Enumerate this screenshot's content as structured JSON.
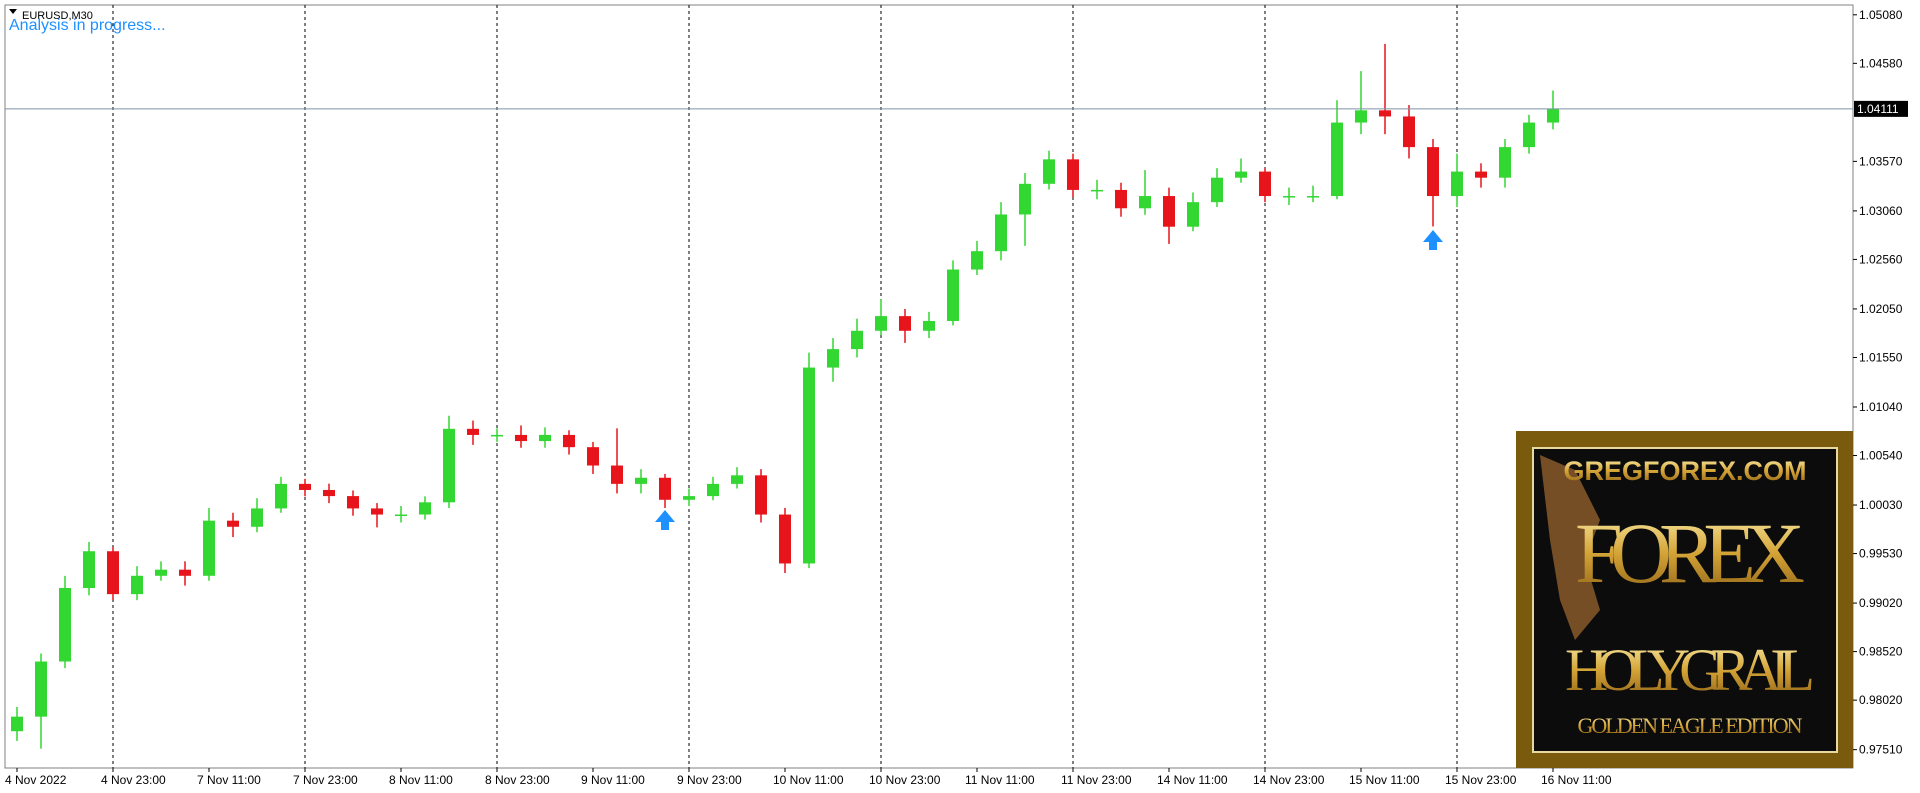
{
  "chart_data": {
    "type": "candlestick",
    "title": "EURUSD,M30",
    "subtitle": "Analysis in progress...",
    "categories": [
      "4 Nov 2022",
      null,
      null,
      null,
      "4 Nov 23:00",
      null,
      null,
      null,
      "7 Nov 11:00",
      null,
      null,
      null,
      "7 Nov 23:00",
      null,
      null,
      null,
      "8 Nov 11:00",
      null,
      null,
      null,
      "8 Nov 23:00",
      null,
      null,
      null,
      "9 Nov 11:00",
      null,
      null,
      null,
      "9 Nov 23:00",
      null,
      null,
      null,
      "10 Nov 11:00",
      null,
      null,
      null,
      "10 Nov 23:00",
      null,
      null,
      null,
      "11 Nov 11:00",
      null,
      null,
      null,
      "11 Nov 23:00",
      null,
      null,
      null,
      "14 Nov 11:00",
      null,
      null,
      null,
      "14 Nov 23:00",
      null,
      null,
      null,
      "15 Nov 11:00",
      null,
      null,
      null,
      "15 Nov 23:00",
      null,
      null,
      null,
      "16 Nov 11:00",
      null,
      null,
      null,
      null,
      null,
      null,
      null,
      null,
      null,
      null,
      null,
      null
    ],
    "open": [
      0.977,
      0.9785,
      0.98418,
      0.99175,
      0.99554,
      0.99112,
      0.99301,
      0.99364,
      0.99301,
      0.99869,
      0.99806,
      0.99995,
      1.00248,
      1.00185,
      1.00122,
      0.99995,
      0.99932,
      0.99932,
      1.00058,
      1.00815,
      1.00752,
      1.00752,
      1.00689,
      1.00752,
      1.00626,
      1.00437,
      1.00248,
      1.00311,
      1.00084,
      1.00122,
      1.00248,
      1.00336,
      0.99932,
      0.99428,
      1.01446,
      1.01636,
      1.01825,
      1.01976,
      1.01825,
      1.01926,
      1.02456,
      1.02645,
      1.03023,
      1.03339,
      1.03591,
      1.03276,
      1.03276,
      1.03087,
      1.03213,
      1.02897,
      1.0315,
      1.03402,
      1.03465,
      1.03213,
      1.03213,
      1.03213,
      1.0397,
      1.04096,
      1.04033,
      1.03717,
      1.03213,
      1.03465,
      1.03402,
      1.03717,
      1.0397,
      null,
      null,
      null,
      null,
      null,
      null,
      null,
      null,
      null,
      null,
      null,
      null
    ],
    "high": [
      0.9795,
      0.985,
      0.993,
      0.9965,
      0.996,
      0.994,
      0.9945,
      0.9945,
      1.0,
      0.9995,
      1.001,
      1.0032,
      1.003,
      1.0025,
      1.0018,
      1.0005,
      1.0002,
      1.0012,
      1.0095,
      1.009,
      1.0082,
      1.0085,
      1.0083,
      1.008,
      1.0068,
      1.0082,
      1.004,
      1.0035,
      1.002,
      1.0032,
      1.0042,
      1.004,
      1.0,
      1.016,
      1.0175,
      1.0195,
      1.0215,
      1.0205,
      1.0202,
      1.0255,
      1.0275,
      1.0315,
      1.0345,
      1.0368,
      1.0365,
      1.0338,
      1.0335,
      1.0348,
      1.033,
      1.0325,
      1.035,
      1.036,
      1.035,
      1.033,
      1.0332,
      1.042,
      1.045,
      1.0478,
      1.0415,
      1.038,
      1.0365,
      1.0355,
      1.038,
      1.0405,
      1.043,
      null,
      null,
      null,
      null,
      null,
      null,
      null,
      null,
      null,
      null,
      null,
      null
    ],
    "low": [
      0.976,
      0.9752,
      0.9835,
      0.991,
      0.9905,
      0.9905,
      0.9925,
      0.992,
      0.9925,
      0.997,
      0.9975,
      0.9995,
      1.0012,
      1.0005,
      0.9992,
      0.998,
      0.9985,
      0.9988,
      1.0,
      1.0065,
      1.0068,
      1.0062,
      1.0062,
      1.0055,
      1.0035,
      1.0015,
      1.0015,
      1.0,
      1.0002,
      1.0008,
      1.002,
      0.9985,
      0.9933,
      0.9938,
      1.013,
      1.0155,
      1.0178,
      1.017,
      1.0175,
      1.0188,
      1.024,
      1.0255,
      1.027,
      1.0328,
      1.032,
      1.0318,
      1.03,
      1.0302,
      1.0272,
      1.0285,
      1.031,
      1.0335,
      1.0315,
      1.0312,
      1.0315,
      1.0318,
      1.0385,
      1.0385,
      1.036,
      1.029,
      1.031,
      1.033,
      1.033,
      1.0365,
      1.039,
      null,
      null,
      null,
      null,
      null,
      null,
      null,
      null,
      null,
      null,
      null,
      null
    ],
    "close": [
      0.9785,
      0.98418,
      0.99175,
      0.99554,
      0.99112,
      0.99301,
      0.99364,
      0.99301,
      0.99869,
      0.99806,
      0.99995,
      1.00248,
      1.00185,
      1.00122,
      0.99995,
      0.99932,
      0.99932,
      1.00058,
      1.00815,
      1.00752,
      1.00752,
      1.00689,
      1.00752,
      1.00626,
      1.00437,
      1.00248,
      1.00311,
      1.00084,
      1.00122,
      1.00248,
      1.00336,
      0.99932,
      0.99428,
      1.01446,
      1.01636,
      1.01825,
      1.01976,
      1.01825,
      1.01926,
      1.02456,
      1.02645,
      1.03023,
      1.03339,
      1.03591,
      1.03276,
      1.03276,
      1.03087,
      1.03213,
      1.02897,
      1.0315,
      1.03402,
      1.03465,
      1.03213,
      1.03213,
      1.03213,
      1.0397,
      1.04096,
      1.04033,
      1.03717,
      1.03213,
      1.03465,
      1.03402,
      1.03717,
      1.0397,
      1.04111,
      null,
      null,
      null,
      null,
      null,
      null,
      null,
      null,
      null,
      null,
      null,
      null
    ],
    "up_color": "#32d732",
    "down_color": "#e8141c",
    "ylim": [
      0.97321,
      1.05181
    ],
    "yticks": [
      {
        "value": 1.0508,
        "label": "1.05080"
      },
      {
        "value": 1.0458,
        "label": "1.04580"
      },
      {
        "value": 1.0357,
        "label": "1.03570"
      },
      {
        "value": 1.0306,
        "label": "1.03060"
      },
      {
        "value": 1.0256,
        "label": "1.02560"
      },
      {
        "value": 1.0205,
        "label": "1.02050"
      },
      {
        "value": 1.0155,
        "label": "1.01550"
      },
      {
        "value": 1.0104,
        "label": "1.01040"
      },
      {
        "value": 1.0054,
        "label": "1.00540"
      },
      {
        "value": 1.0003,
        "label": "1.00030"
      },
      {
        "value": 0.9953,
        "label": "0.99530"
      },
      {
        "value": 0.9902,
        "label": "0.99020"
      },
      {
        "value": 0.9852,
        "label": "0.98520"
      },
      {
        "value": 0.9802,
        "label": "0.98020"
      },
      {
        "value": 0.9751,
        "label": "0.97510"
      }
    ],
    "current_price": 1.04111,
    "grid": true
  },
  "banner": {
    "site": "GREGFOREX.COM",
    "title": "FOREX",
    "subtitle": "HOLY GRAIL",
    "edition": "GOLDEN EAGLE EDITION"
  }
}
